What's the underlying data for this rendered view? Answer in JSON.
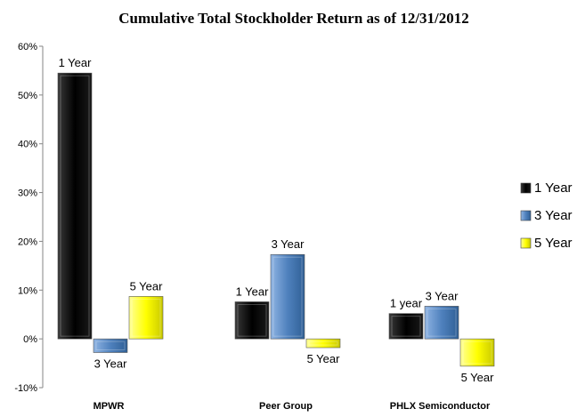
{
  "chart_data": {
    "type": "bar",
    "title": "Cumulative Total Stockholder Return as of 12/31/2012",
    "xlabel": "",
    "ylabel": "",
    "ylim": [
      -10,
      60
    ],
    "yticks": [
      "-10%",
      "0%",
      "10%",
      "20%",
      "30%",
      "40%",
      "50%",
      "60%"
    ],
    "ytick_values": [
      -10,
      0,
      10,
      20,
      30,
      40,
      50,
      60
    ],
    "categories": [
      "MPWR",
      "Peer Group",
      "PHLX Semiconductor"
    ],
    "series": [
      {
        "name": "1 Year",
        "color": "#000000",
        "values": [
          54.5,
          7.6,
          5.2
        ]
      },
      {
        "name": "3 Year",
        "color": "#4f81bd",
        "values": [
          -2.8,
          17.3,
          6.7
        ]
      },
      {
        "name": "5 Year",
        "color": "#ffff00",
        "values": [
          8.7,
          -1.8,
          -5.6
        ]
      }
    ],
    "data_labels": [
      [
        "1 Year",
        "1 Year",
        "1 year"
      ],
      [
        "3 Year",
        "3 Year",
        "3 Year"
      ],
      [
        "5 Year",
        "5 Year",
        "5 Year"
      ]
    ],
    "grid": false,
    "legend_position": "right"
  }
}
